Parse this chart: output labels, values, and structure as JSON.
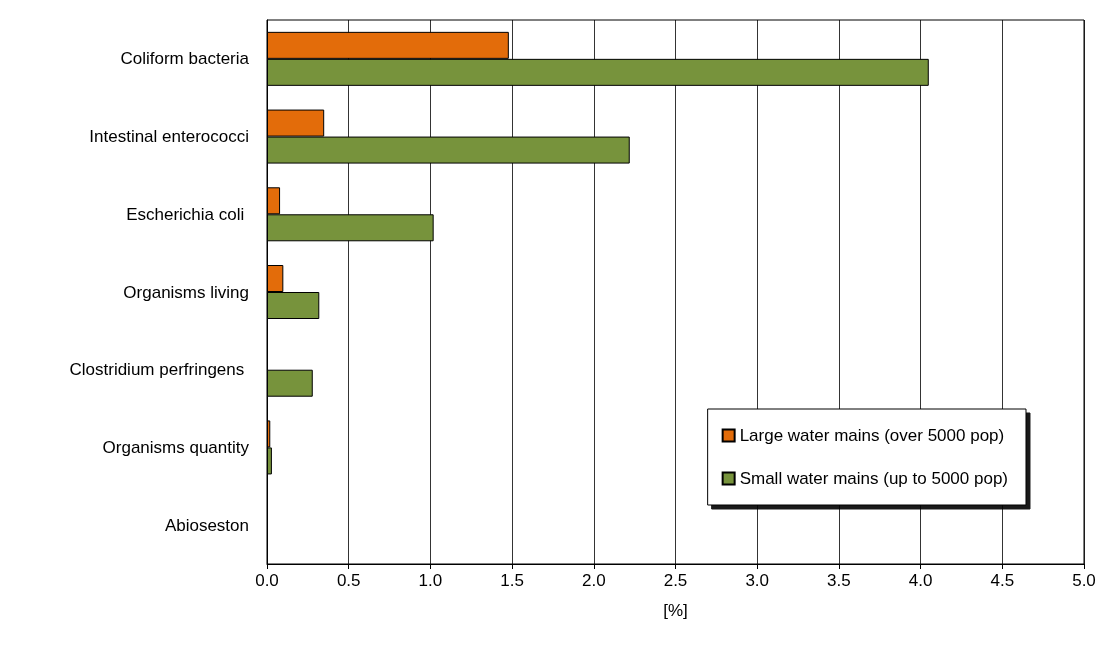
{
  "chart_data": {
    "type": "bar",
    "orientation": "horizontal",
    "xlabel": "[%]",
    "categories": [
      "Coliform bacteria",
      "Intestinal enterococci",
      "Escherichia coli ",
      "Organisms living",
      "Clostridium perfringens ",
      "Organisms quantity",
      "Abioseston"
    ],
    "series": [
      {
        "name": "Large water mains (over 5000 pop)",
        "color": "#e36c0a",
        "values": [
          1.48,
          0.35,
          0.08,
          0.1,
          null,
          0.02,
          null
        ]
      },
      {
        "name": "Small water mains (up to 5000 pop)",
        "color": "#77933c",
        "values": [
          4.05,
          2.22,
          1.02,
          0.32,
          0.28,
          0.03,
          null
        ]
      }
    ],
    "xlim": [
      0,
      5
    ],
    "xticks": [
      {
        "value": 0,
        "label": "0.0"
      },
      {
        "value": 0.5,
        "label": "0.5"
      },
      {
        "value": 1,
        "label": "1.0"
      },
      {
        "value": 1.5,
        "label": "1.5"
      },
      {
        "value": 2,
        "label": "2.0"
      },
      {
        "value": 2.5,
        "label": "2.5"
      },
      {
        "value": 3,
        "label": "3.0"
      },
      {
        "value": 3.5,
        "label": "3.5"
      },
      {
        "value": 4,
        "label": "4.0"
      },
      {
        "value": 4.5,
        "label": "4.5"
      },
      {
        "value": 5,
        "label": "5.0"
      }
    ],
    "grid": "x",
    "legend": "bottom right"
  }
}
